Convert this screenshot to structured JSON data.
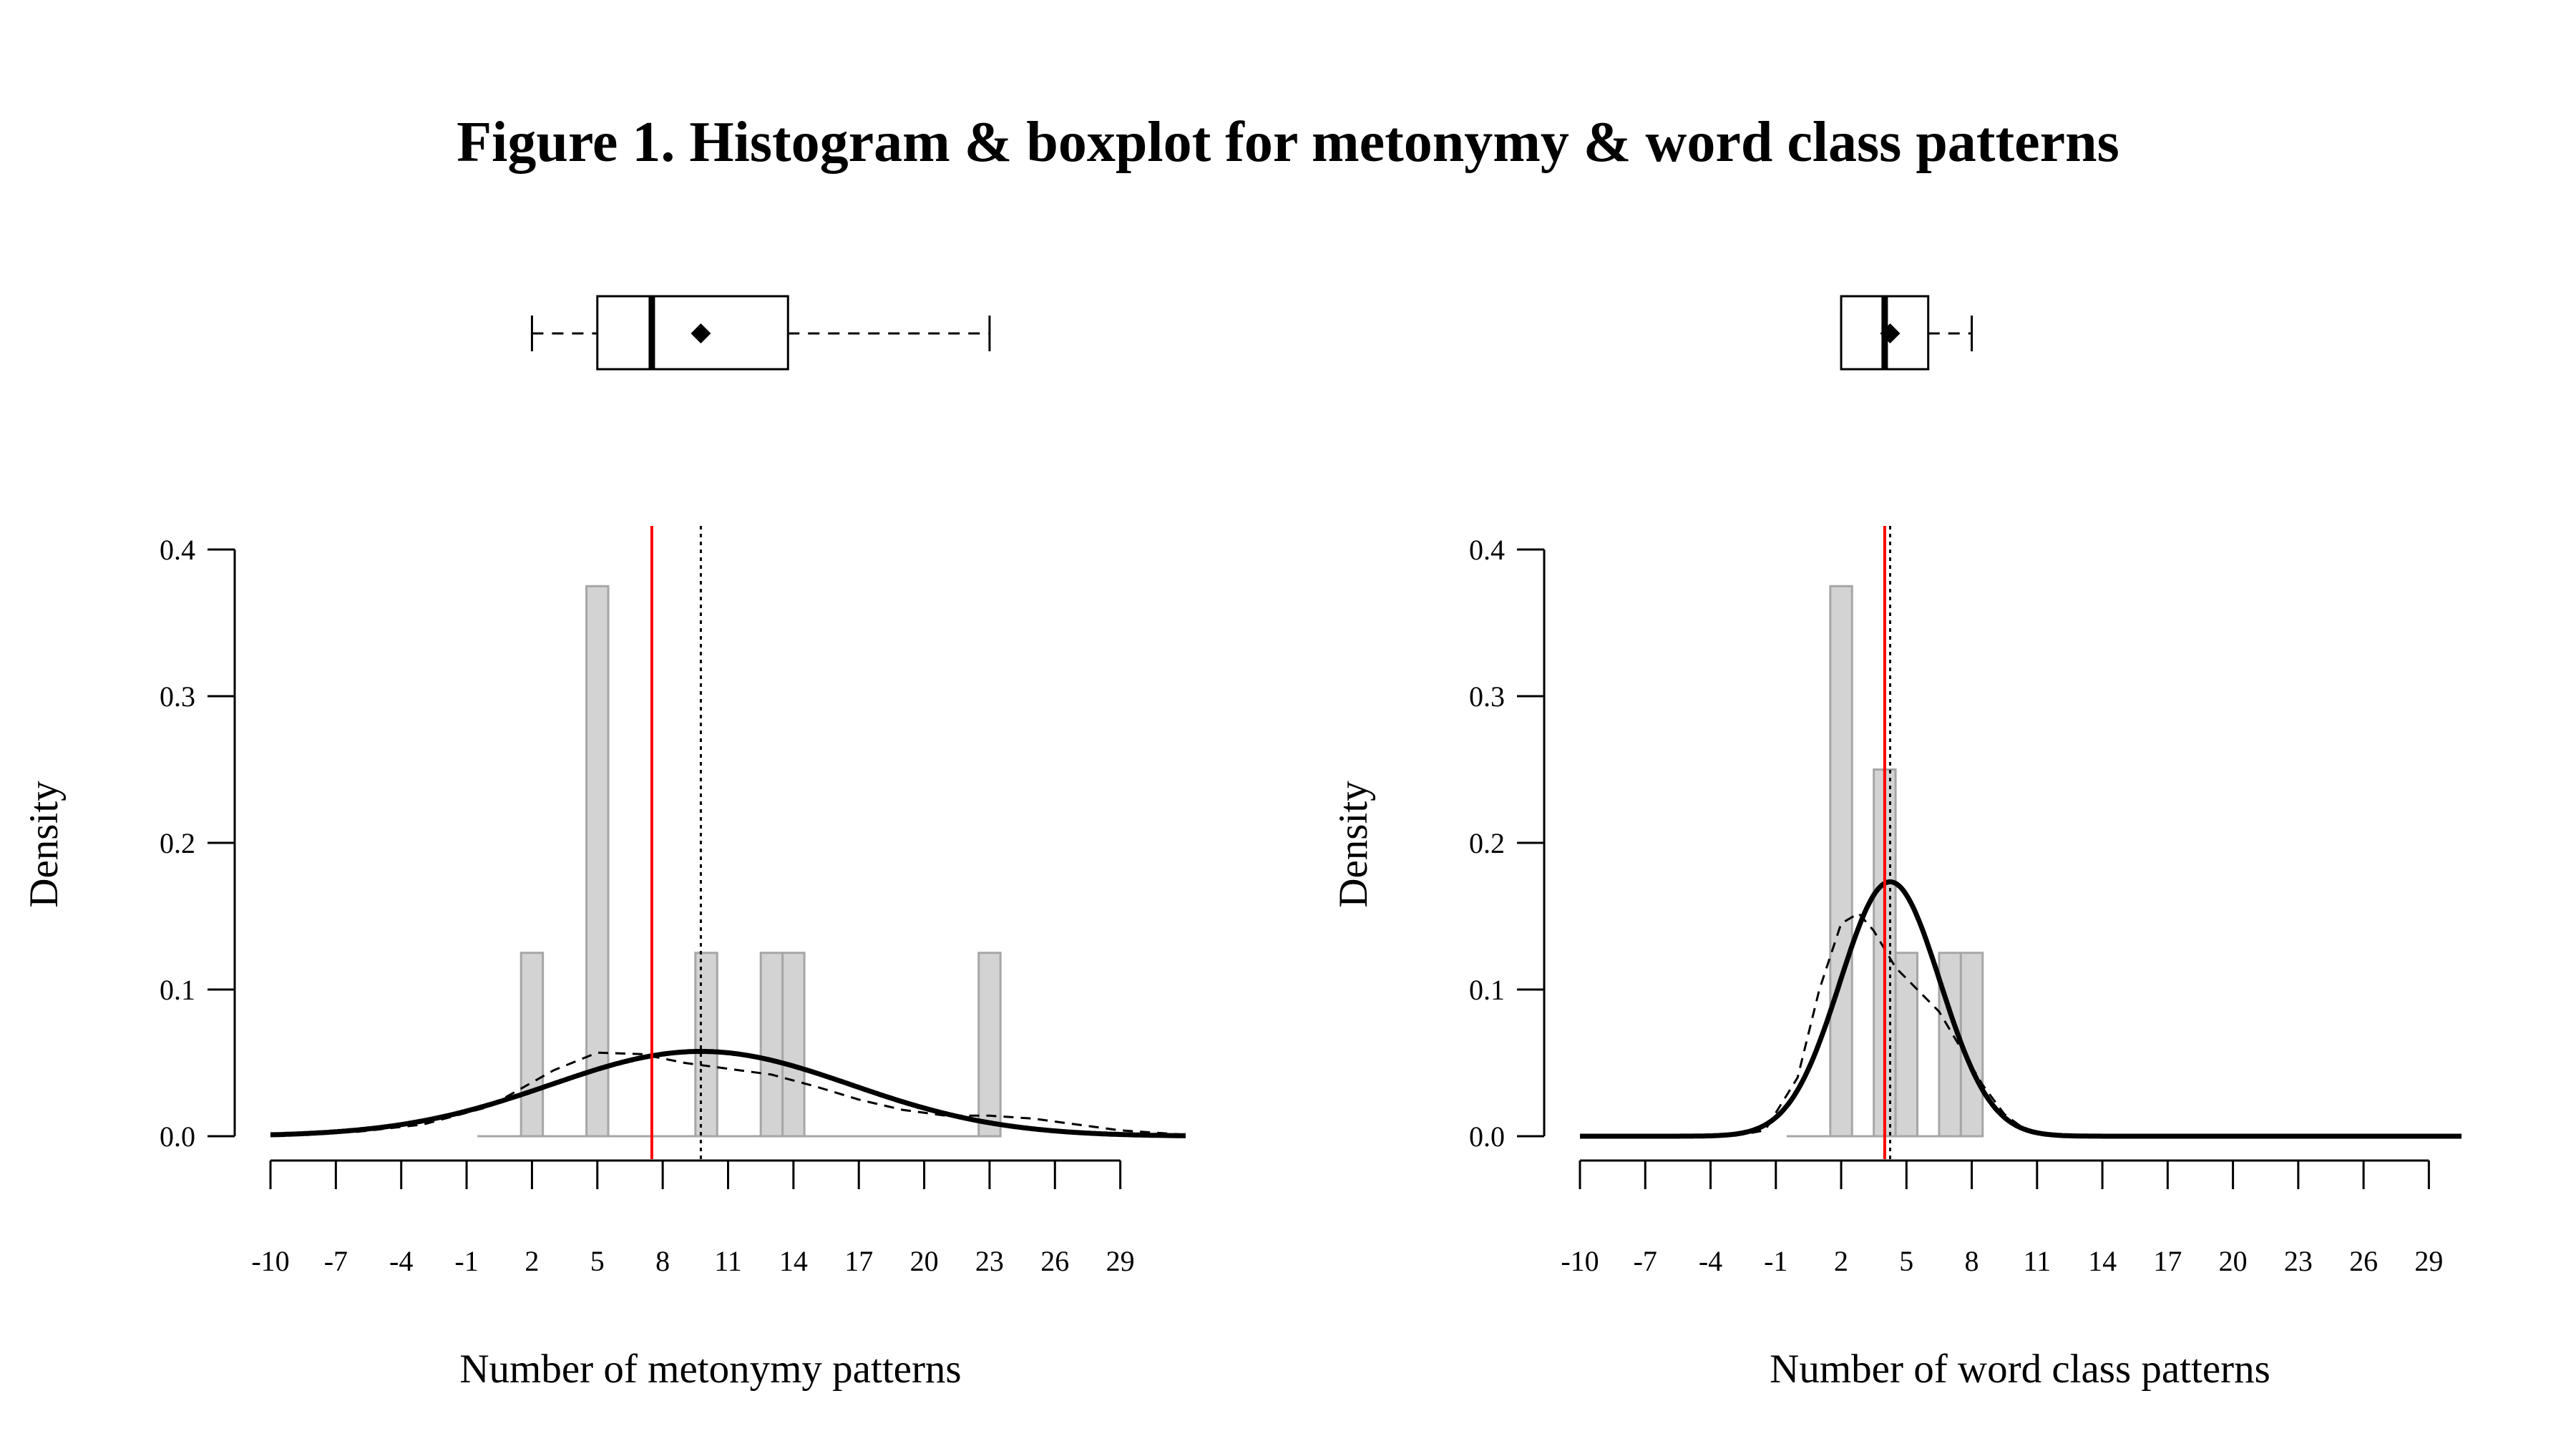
{
  "title": "Figure 1. Histogram & boxplot for metonymy & word class patterns",
  "colors": {
    "bar_fill": "#d3d3d3",
    "bar_stroke": "#a6a6a6",
    "mean_line": "#ff0000",
    "median_line": "#000000",
    "curve": "#000000"
  },
  "chart_data": [
    {
      "type": "bar",
      "panel": "metonymy",
      "title": "",
      "xlabel": "Number of metonymy patterns",
      "ylabel": "Density",
      "xlim": [
        -10,
        32
      ],
      "ylim": [
        0,
        0.4
      ],
      "x_ticks": [
        -10,
        -7,
        -4,
        -1,
        2,
        5,
        8,
        11,
        14,
        17,
        20,
        23,
        26,
        29
      ],
      "y_ticks": [
        "0.0",
        "0.1",
        "0.2",
        "0.3",
        "0.4"
      ],
      "bin_range": [
        -0.5,
        23.5
      ],
      "histogram": [
        {
          "x0": 1.5,
          "x1": 2.5,
          "density": 0.125
        },
        {
          "x0": 4.5,
          "x1": 5.5,
          "density": 0.375
        },
        {
          "x0": 9.5,
          "x1": 10.5,
          "density": 0.125
        },
        {
          "x0": 12.5,
          "x1": 13.5,
          "density": 0.125
        },
        {
          "x0": 13.5,
          "x1": 14.5,
          "density": 0.125
        },
        {
          "x0": 22.5,
          "x1": 23.5,
          "density": 0.125
        }
      ],
      "normal_curve": {
        "mean": 9.75,
        "sd": 6.9
      },
      "density_curve": [
        [
          -10,
          0.001
        ],
        [
          -6,
          0.003
        ],
        [
          -3,
          0.008
        ],
        [
          0,
          0.02
        ],
        [
          3,
          0.045
        ],
        [
          5,
          0.057
        ],
        [
          7,
          0.056
        ],
        [
          9,
          0.05
        ],
        [
          11,
          0.046
        ],
        [
          13,
          0.042
        ],
        [
          15,
          0.034
        ],
        [
          17,
          0.025
        ],
        [
          19,
          0.018
        ],
        [
          21,
          0.014
        ],
        [
          23,
          0.014
        ],
        [
          25,
          0.012
        ],
        [
          27,
          0.008
        ],
        [
          29,
          0.004
        ],
        [
          31,
          0.002
        ],
        [
          32,
          0.001
        ]
      ],
      "vlines": {
        "median": 7.5,
        "mean": 9.75
      },
      "boxplot": {
        "min": 2,
        "q1": 5,
        "median": 7.5,
        "mean": 9.75,
        "q3": 13.75,
        "max": 23
      }
    },
    {
      "type": "bar",
      "panel": "word_class",
      "title": "",
      "xlabel": "Number of word class patterns",
      "ylabel": "Density",
      "xlim": [
        -10,
        30.5
      ],
      "ylim": [
        0,
        0.4
      ],
      "x_ticks": [
        -10,
        -7,
        -4,
        -1,
        2,
        5,
        8,
        11,
        14,
        17,
        20,
        23,
        26,
        29
      ],
      "y_ticks": [
        "0.0",
        "0.1",
        "0.2",
        "0.3",
        "0.4"
      ],
      "bin_range": [
        -0.5,
        8.5
      ],
      "histogram": [
        {
          "x0": 1.5,
          "x1": 2.5,
          "density": 0.375
        },
        {
          "x0": 3.5,
          "x1": 4.5,
          "density": 0.25
        },
        {
          "x0": 4.5,
          "x1": 5.5,
          "density": 0.125
        },
        {
          "x0": 6.5,
          "x1": 7.5,
          "density": 0.125
        },
        {
          "x0": 7.5,
          "x1": 8.5,
          "density": 0.125
        }
      ],
      "normal_curve": {
        "mean": 4.25,
        "sd": 2.3
      },
      "density_curve": [
        [
          -10,
          0
        ],
        [
          -3,
          0.0
        ],
        [
          -1.5,
          0.004
        ],
        [
          0,
          0.04
        ],
        [
          1,
          0.1
        ],
        [
          2,
          0.145
        ],
        [
          2.8,
          0.152
        ],
        [
          3.5,
          0.14
        ],
        [
          4.5,
          0.115
        ],
        [
          5.5,
          0.1
        ],
        [
          6.5,
          0.085
        ],
        [
          7.5,
          0.06
        ],
        [
          8.5,
          0.035
        ],
        [
          9.5,
          0.015
        ],
        [
          10.5,
          0.004
        ],
        [
          12,
          0
        ],
        [
          30.5,
          0
        ]
      ],
      "vlines": {
        "median": 4,
        "mean": 4.25
      },
      "boxplot": {
        "min": 2,
        "q1": 2,
        "median": 4,
        "mean": 4.25,
        "q3": 6,
        "max": 8
      }
    }
  ]
}
